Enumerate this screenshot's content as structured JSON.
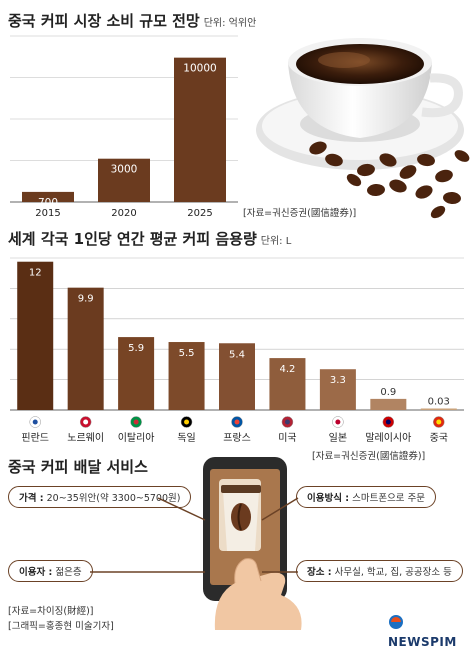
{
  "section1": {
    "title": "중국 커피 시장 소비 규모 전망",
    "unit": "단위: 억위안",
    "source": "[자료=궈신증권(國信證券)]"
  },
  "section2": {
    "title": "세계 각국 1인당 연간 평균 커피 음용량",
    "unit": "단위: L",
    "source": "[자료=궈신증권(國信證券)]"
  },
  "section3": {
    "title": "중국 커피 배달 서비스",
    "price_label": "가격 :",
    "price_value": "20~35위안(약 3300~5700원)",
    "method_label": "이용방식 :",
    "method_value": "스마트폰으로 주문",
    "user_label": "이용자 :",
    "user_value": "젊은층",
    "place_label": "장소 :",
    "place_value": "사무실, 학교, 집, 공공장소 등"
  },
  "credits": {
    "line1": "[자료=차이징(財經)]",
    "line2": "[그래픽=홍종현 미술기자]"
  },
  "logo": "NEWSPIM",
  "colors": {
    "bar": "#6b3b1f",
    "bar_light": "#c9a27a",
    "grid": "#bbbbbb",
    "accent": "#6b4226"
  },
  "chart_data": [
    {
      "type": "bar",
      "title": "중국 커피 시장 소비 규모 전망",
      "categories": [
        "2015",
        "2020",
        "2025"
      ],
      "values": [
        700,
        3000,
        10000
      ],
      "ylabel": "",
      "xlabel": "",
      "ylim": [
        0,
        11500
      ],
      "grid": true
    },
    {
      "type": "bar",
      "title": "세계 각국 1인당 연간 평균 커피 음용량",
      "categories": [
        "핀란드",
        "노르웨이",
        "이탈리아",
        "독일",
        "프랑스",
        "미국",
        "일본",
        "말레이시아",
        "중국"
      ],
      "values": [
        12,
        9.9,
        5.9,
        5.5,
        5.4,
        4.2,
        3.3,
        0.9,
        0.03
      ],
      "value_labels": [
        "12",
        "9.9",
        "5.9",
        "5.5",
        "5.4",
        "4.2",
        "3.3",
        "0.9",
        "0.03"
      ],
      "flag_icons": [
        "finland-flag-icon",
        "norway-flag-icon",
        "italy-flag-icon",
        "germany-flag-icon",
        "france-flag-icon",
        "usa-flag-icon",
        "japan-flag-icon",
        "malaysia-flag-icon",
        "china-flag-icon"
      ],
      "ylabel": "",
      "xlabel": "",
      "ylim": [
        0,
        12.3
      ],
      "grid": true
    }
  ]
}
